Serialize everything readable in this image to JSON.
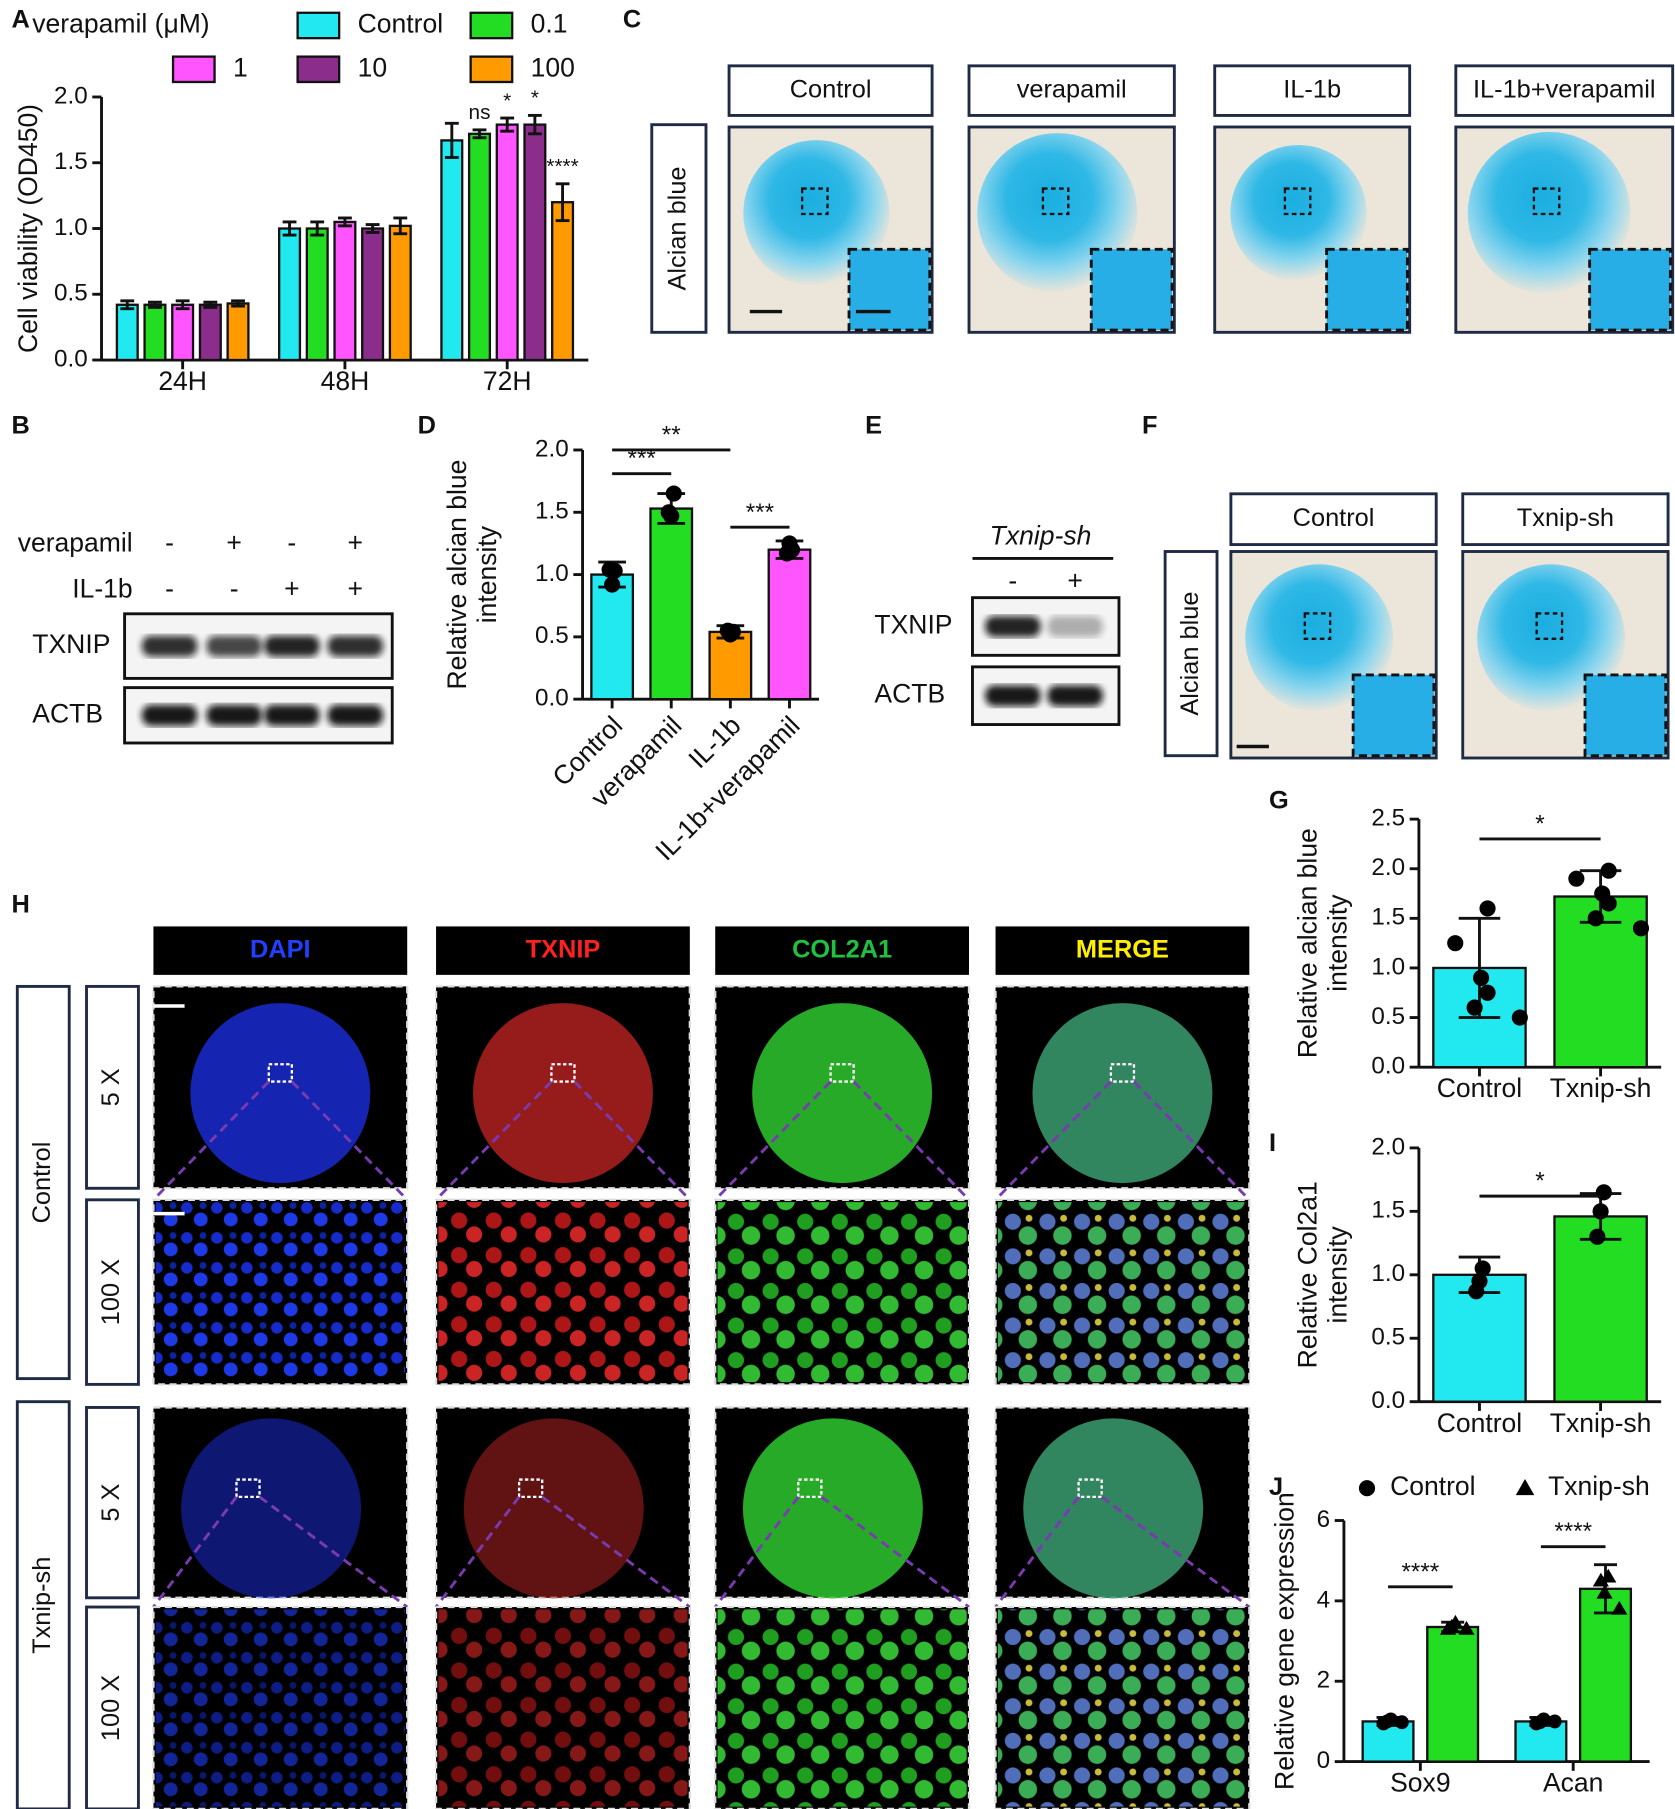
{
  "figure": {
    "panel_letters": [
      "A",
      "B",
      "C",
      "D",
      "E",
      "F",
      "G",
      "H",
      "I",
      "J"
    ]
  },
  "panel_b": {
    "treatments": [
      {
        "name": "verapamil",
        "signs": [
          "-",
          "+",
          "-",
          "+"
        ]
      },
      {
        "name": "IL-1b",
        "signs": [
          "-",
          "-",
          "+",
          "+"
        ]
      }
    ],
    "proteins": [
      "TXNIP",
      "ACTB"
    ]
  },
  "panel_c": {
    "conditions": [
      "Control",
      "verapamil",
      "IL-1b",
      "IL-1b+verapamil"
    ],
    "stain": "Alcian blue"
  },
  "panel_e": {
    "condition": "Txnip-sh",
    "signs": [
      "-",
      "+"
    ],
    "proteins": [
      "TXNIP",
      "ACTB"
    ]
  },
  "panel_f": {
    "conditions": [
      "Control",
      "Txnip-sh"
    ],
    "stain": "Alcian blue"
  },
  "panel_h": {
    "channels": [
      "DAPI",
      "TXNIP",
      "COL2A1",
      "MERGE"
    ],
    "groups": [
      "Control",
      "Txnip-sh"
    ],
    "magnifications": [
      "5 X",
      "100 X"
    ]
  },
  "chart_data": [
    {
      "type": "bar",
      "ylabel": "Cell viability (OD450)",
      "legend_title": "verapamil (μM)",
      "categories": [
        "24H",
        "48H",
        "72H"
      ],
      "series": [
        {
          "name": "Control",
          "color": "#22e8f0",
          "values": [
            0.42,
            1.0,
            1.67
          ],
          "errors": [
            0.03,
            0.05,
            0.13
          ]
        },
        {
          "name": "0.1",
          "color": "#22dd22",
          "values": [
            0.42,
            1.0,
            1.72
          ],
          "errors": [
            0.02,
            0.05,
            0.03
          ]
        },
        {
          "name": "1",
          "color": "#ff55ff",
          "values": [
            0.42,
            1.05,
            1.79
          ],
          "errors": [
            0.03,
            0.03,
            0.05
          ]
        },
        {
          "name": "10",
          "color": "#8b2d8b",
          "values": [
            0.42,
            1.0,
            1.79
          ],
          "errors": [
            0.02,
            0.03,
            0.07
          ]
        },
        {
          "name": "100",
          "color": "#ff9a00",
          "values": [
            0.43,
            1.02,
            1.2
          ],
          "errors": [
            0.02,
            0.06,
            0.14
          ]
        }
      ],
      "annotations": [
        "ns",
        "*",
        "*",
        "****"
      ],
      "ylim": [
        0,
        2
      ],
      "yticks": [
        {
          "value": 0,
          "label": "0.0"
        },
        {
          "value": 0.5,
          "label": "0.5"
        },
        {
          "value": 1,
          "label": "1.0"
        },
        {
          "value": 1.5,
          "label": "1.5"
        },
        {
          "value": 2,
          "label": "2.0"
        }
      ]
    },
    {
      "type": "bar",
      "ylabel": [
        "Relative alcian blue",
        "intensity"
      ],
      "categories": [
        "Control",
        "verapamil",
        "IL-1b",
        "IL-1b+verapamil"
      ],
      "colors": [
        "#22e8f0",
        "#22dd22",
        "#ff9a00",
        "#ff55ff"
      ],
      "values": [
        1.0,
        1.53,
        0.54,
        1.2
      ],
      "errors": [
        0.1,
        0.12,
        0.05,
        0.07
      ],
      "points": [
        [
          1.03,
          0.92,
          1.04
        ],
        [
          1.65,
          1.47,
          1.5
        ],
        [
          0.54,
          0.52,
          0.55
        ],
        [
          1.2,
          1.25,
          1.17
        ]
      ],
      "annotations": [
        "**",
        "***",
        "***"
      ],
      "ylim": [
        0,
        2
      ],
      "yticks": [
        {
          "value": 0,
          "label": "0.0"
        },
        {
          "value": 0.5,
          "label": "0.5"
        },
        {
          "value": 1,
          "label": "1.0"
        },
        {
          "value": 1.5,
          "label": "1.5"
        },
        {
          "value": 2,
          "label": "2.0"
        }
      ]
    },
    {
      "type": "bar",
      "ylabel": [
        "Relative alcian blue",
        "intensity"
      ],
      "categories": [
        "Control",
        "Txnip-sh"
      ],
      "colors": [
        "#22e8f0",
        "#22dd22"
      ],
      "values": [
        1.0,
        1.72
      ],
      "errors": [
        0.5,
        0.26
      ],
      "points": [
        [
          1.6,
          1.25,
          0.9,
          0.75,
          0.6,
          0.5
        ],
        [
          1.98,
          1.9,
          1.75,
          1.65,
          1.5,
          1.4
        ]
      ],
      "annotations": [
        "*"
      ],
      "ylim": [
        0,
        2.5
      ],
      "yticks": [
        {
          "value": 0,
          "label": "0.0"
        },
        {
          "value": 0.5,
          "label": "0.5"
        },
        {
          "value": 1,
          "label": "1.0"
        },
        {
          "value": 1.5,
          "label": "1.5"
        },
        {
          "value": 2,
          "label": "2.0"
        },
        {
          "value": 2.5,
          "label": "2.5"
        }
      ]
    },
    {
      "type": "bar",
      "ylabel": [
        "Relative Col2a1",
        "intensity"
      ],
      "categories": [
        "Control",
        "Txnip-sh"
      ],
      "colors": [
        "#22e8f0",
        "#22dd22"
      ],
      "values": [
        1.0,
        1.46
      ],
      "errors": [
        0.14,
        0.18
      ],
      "points": [
        [
          1.05,
          0.95,
          0.87
        ],
        [
          1.65,
          1.5,
          1.3
        ]
      ],
      "annotations": [
        "*"
      ],
      "ylim": [
        0,
        2
      ],
      "yticks": [
        {
          "value": 0,
          "label": "0.0"
        },
        {
          "value": 0.5,
          "label": "0.5"
        },
        {
          "value": 1,
          "label": "1.0"
        },
        {
          "value": 1.5,
          "label": "1.5"
        },
        {
          "value": 2,
          "label": "2.0"
        }
      ]
    },
    {
      "type": "bar",
      "ylabel": "Relative gene expression",
      "categories": [
        "Sox9",
        "Acan"
      ],
      "series": [
        {
          "name": "Control",
          "color": "#22e8f0",
          "marker": "circle",
          "values": [
            1.0,
            1.0
          ],
          "errors": [
            0.1,
            0.1
          ],
          "points": [
            [
              1.05,
              0.95,
              1.0,
              0.98
            ],
            [
              1.05,
              0.95,
              0.98,
              1.0
            ]
          ]
        },
        {
          "name": "Txnip-sh",
          "color": "#22dd22",
          "marker": "triangle",
          "values": [
            3.35,
            4.3
          ],
          "errors": [
            0.12,
            0.6
          ],
          "points": [
            [
              3.45,
              3.3,
              3.35,
              3.3
            ],
            [
              4.6,
              4.5,
              4.2,
              3.8
            ]
          ]
        }
      ],
      "annotations": [
        "****",
        "****"
      ],
      "ylim": [
        0,
        6
      ],
      "yticks": [
        0,
        2,
        4,
        6
      ]
    }
  ]
}
